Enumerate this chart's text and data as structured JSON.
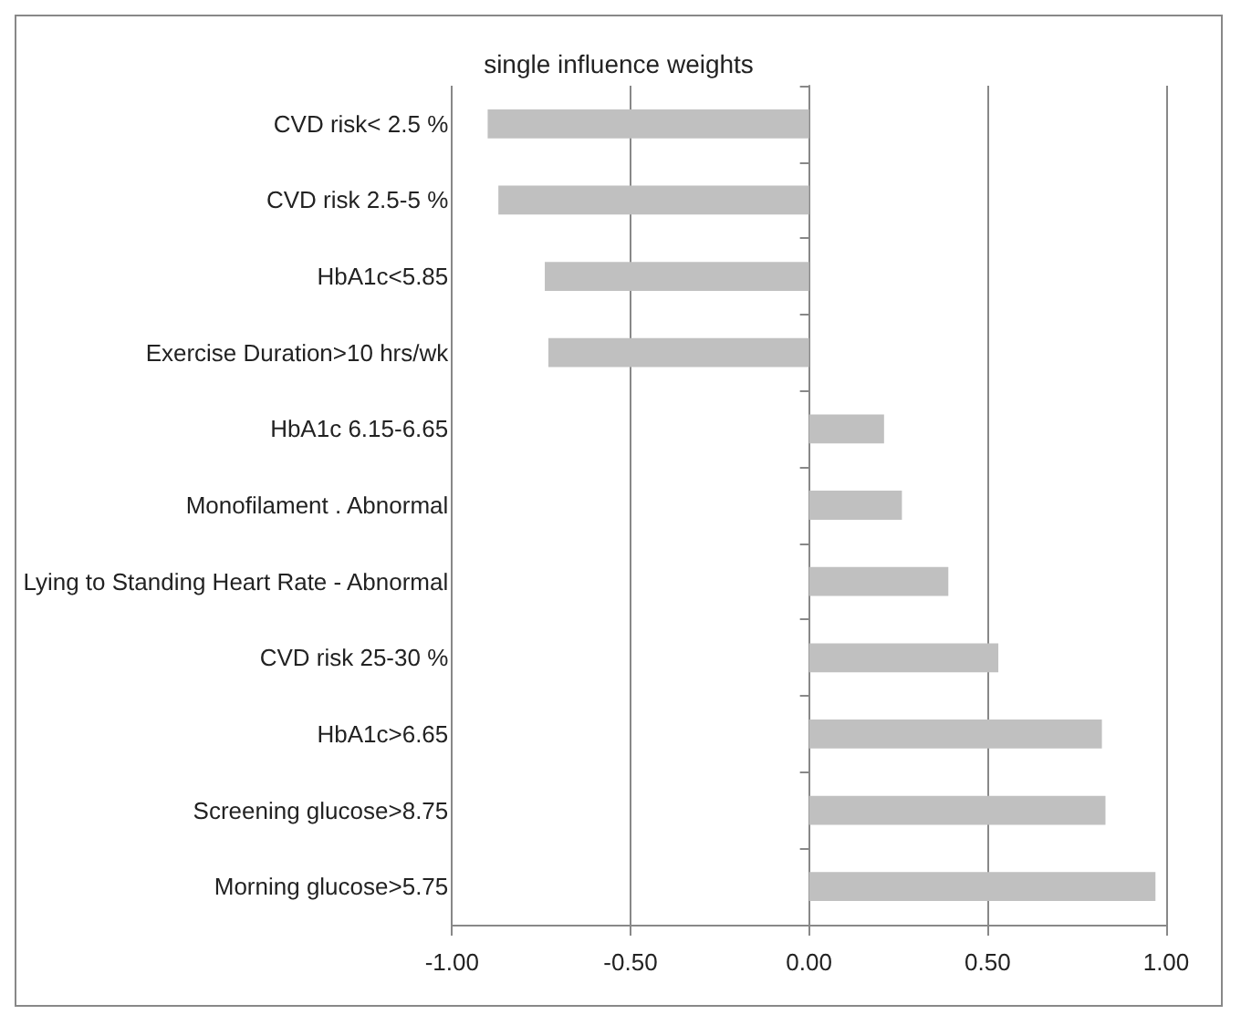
{
  "chart_data": {
    "type": "bar",
    "orientation": "horizontal",
    "title": "single influence weights",
    "categories": [
      "CVD risk< 2.5 %",
      "CVD risk 2.5-5 %",
      "HbA1c<5.85",
      "Exercise Duration>10 hrs/wk",
      "HbA1c 6.15-6.65",
      "Monofilament . Abnormal",
      "Lying to Standing Heart Rate - Abnormal",
      "CVD risk 25-30 %",
      "HbA1c>6.65",
      "Screening glucose>8.75",
      "Morning glucose>5.75"
    ],
    "values": [
      -0.9,
      -0.87,
      -0.74,
      -0.73,
      0.21,
      0.26,
      0.39,
      0.53,
      0.82,
      0.83,
      0.97
    ],
    "color": "#c0c0c0",
    "xlim": [
      -1,
      1
    ],
    "xticks": [
      {
        "value": -1,
        "label": "-1.00"
      },
      {
        "value": -0.5,
        "label": "-0.50"
      },
      {
        "value": 0,
        "label": "0.00"
      },
      {
        "value": 0.5,
        "label": "0.50"
      },
      {
        "value": 1,
        "label": "1.00"
      }
    ],
    "grid": "x"
  }
}
